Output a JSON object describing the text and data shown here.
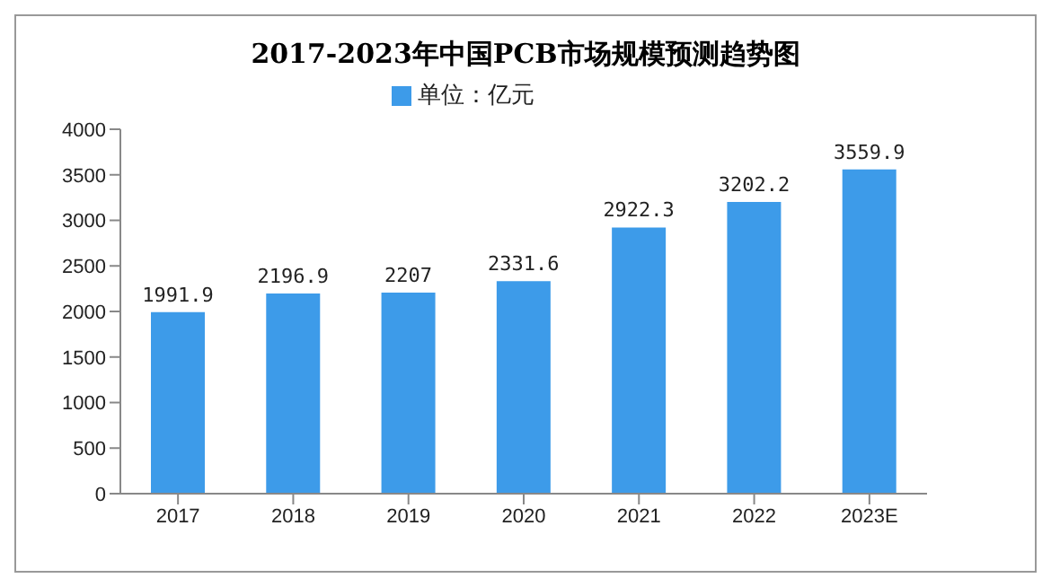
{
  "chart_data": {
    "type": "bar",
    "title": "2017-2023年中国PCB市场规模预测趋势图",
    "categories": [
      "2017",
      "2018",
      "2019",
      "2020",
      "2021",
      "2022",
      "2023E"
    ],
    "series": [
      {
        "name": "单位：亿元",
        "color": "#3d9be9",
        "values": [
          1991.9,
          2196.9,
          2207,
          2331.6,
          2922.3,
          3202.2,
          3559.9
        ]
      }
    ],
    "ylim": [
      0,
      4000
    ],
    "yticks": [
      0,
      500,
      1000,
      1500,
      2000,
      2500,
      3000,
      3500,
      4000
    ],
    "data_labels": true,
    "legend": "top",
    "grid": false
  }
}
